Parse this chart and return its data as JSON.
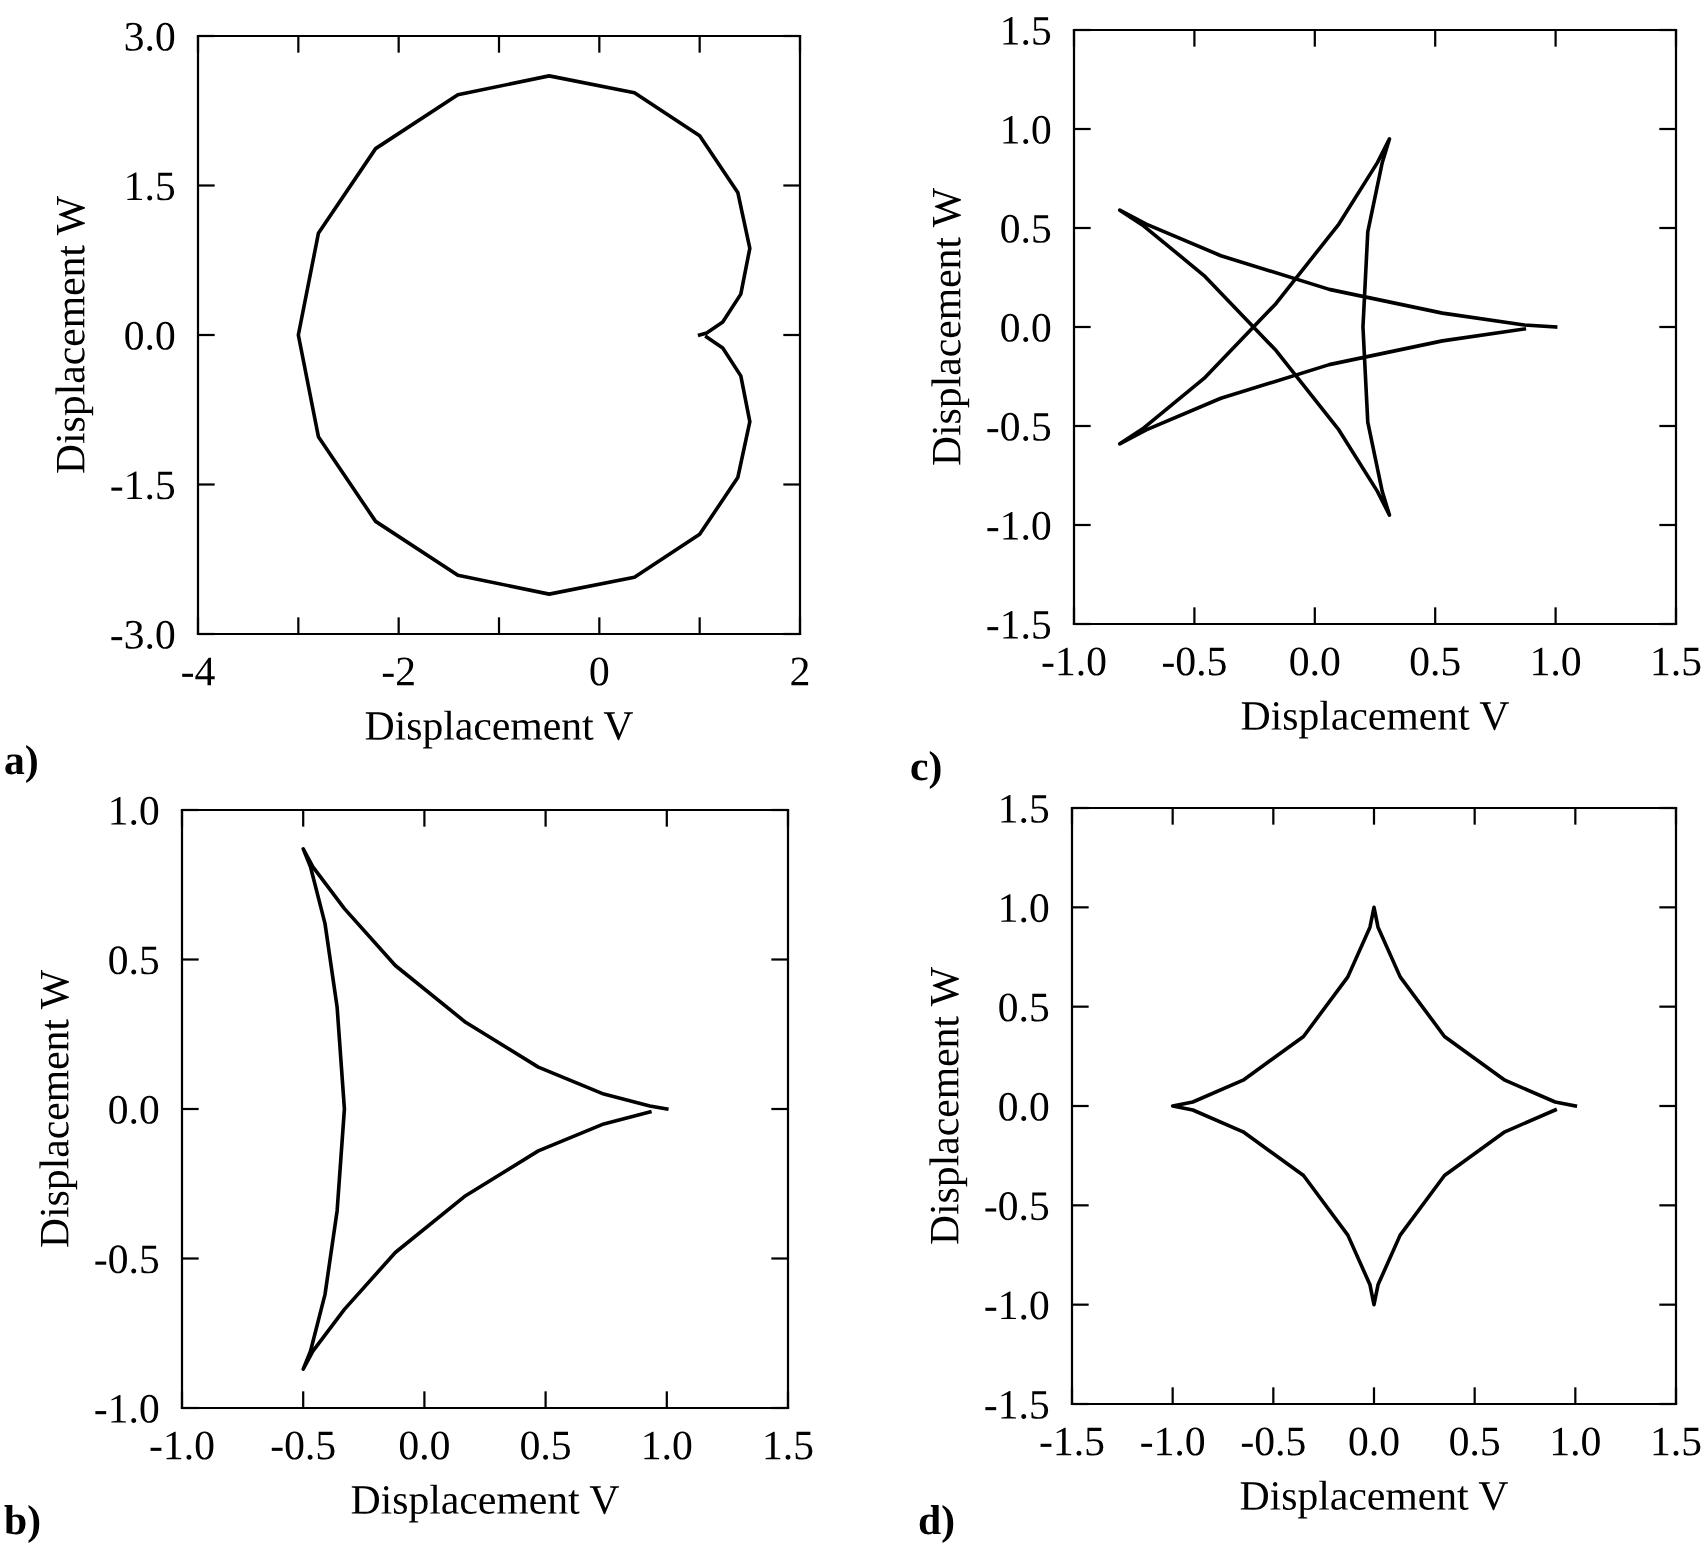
{
  "chart_data": [
    {
      "type": "line",
      "xlabel": "Displacement V",
      "ylabel": "Displacement W",
      "annotations": [
        "a)"
      ],
      "xlim": [
        -4,
        2
      ],
      "ylim": [
        -3.0,
        3.0
      ],
      "xticks": [
        -4,
        {
          "value": -3,
          "label": null
        },
        -2,
        {
          "value": -1,
          "label": null
        },
        0,
        {
          "value": 1,
          "label": null
        },
        2
      ],
      "yticks": [
        {
          "value": -3.0,
          "label": "-3.0"
        },
        {
          "value": -1.5,
          "label": "-1.5"
        },
        {
          "value": 0.0,
          "label": "0.0"
        },
        {
          "value": 1.5,
          "label": "1.5"
        },
        {
          "value": 3.0,
          "label": "3.0"
        }
      ],
      "series": [
        {
          "color": "#000000",
          "x": [
            1.0,
            1.07,
            1.23,
            1.41,
            1.5,
            1.38,
            1.0,
            0.35,
            -0.5,
            -1.41,
            -2.23,
            -2.8,
            -3.0,
            -2.8,
            -2.23,
            -1.41,
            -0.5,
            0.35,
            1.0,
            1.38,
            1.5,
            1.41,
            1.23,
            1.07
          ],
          "values": [
            0.0,
            0.02,
            0.13,
            0.41,
            0.87,
            1.43,
            2.0,
            2.43,
            2.6,
            2.41,
            1.87,
            1.02,
            0.0,
            -1.02,
            -1.87,
            -2.41,
            -2.6,
            -2.43,
            -2.0,
            -1.43,
            -0.87,
            -0.41,
            -0.13,
            -0.02
          ]
        }
      ]
    },
    {
      "type": "line",
      "xlabel": "Displacement V",
      "ylabel": "Displacement W",
      "annotations": [
        "c)"
      ],
      "xlim": [
        -1.0,
        1.5
      ],
      "ylim": [
        -1.5,
        1.5
      ],
      "xticks": [
        {
          "value": -1.0,
          "label": "-1.0"
        },
        {
          "value": -0.5,
          "label": "-0.5"
        },
        {
          "value": 0.0,
          "label": "0.0"
        },
        {
          "value": 0.5,
          "label": "0.5"
        },
        {
          "value": 1.0,
          "label": "1.0"
        },
        {
          "value": 1.5,
          "label": "1.5"
        }
      ],
      "yticks": [
        {
          "value": -1.5,
          "label": "-1.5"
        },
        {
          "value": -1.0,
          "label": "-1.0"
        },
        {
          "value": -0.5,
          "label": "-0.5"
        },
        {
          "value": 0.0,
          "label": "0.0"
        },
        {
          "value": 0.5,
          "label": "0.5"
        },
        {
          "value": 1.0,
          "label": "1.0"
        },
        {
          "value": 1.5,
          "label": "1.5"
        }
      ],
      "series": [
        {
          "color": "#000000",
          "x": [
            1.0,
            0.87,
            0.53,
            0.06,
            -0.39,
            -0.7,
            -0.81,
            -0.71,
            -0.46,
            -0.16,
            0.1,
            0.26,
            0.31,
            0.28,
            0.22,
            0.2,
            0.22,
            0.28,
            0.31,
            0.26,
            0.1,
            -0.16,
            -0.46,
            -0.71,
            -0.81,
            -0.7,
            -0.39,
            0.06,
            0.53,
            0.87
          ],
          "values": [
            0.0,
            0.01,
            0.07,
            0.19,
            0.36,
            0.52,
            0.59,
            0.51,
            0.26,
            -0.12,
            -0.52,
            -0.83,
            -0.95,
            -0.83,
            -0.48,
            0.0,
            0.48,
            0.83,
            0.95,
            0.83,
            0.52,
            0.12,
            -0.26,
            -0.51,
            -0.59,
            -0.52,
            -0.36,
            -0.19,
            -0.07,
            -0.01
          ]
        }
      ]
    },
    {
      "type": "line",
      "xlabel": "Displacement V",
      "ylabel": "Displacement W",
      "annotations": [
        "b)"
      ],
      "xlim": [
        -1.0,
        1.5
      ],
      "ylim": [
        -1.0,
        1.0
      ],
      "xticks": [
        {
          "value": -1.0,
          "label": "-1.0"
        },
        {
          "value": -0.5,
          "label": "-0.5"
        },
        {
          "value": 0.0,
          "label": "0.0"
        },
        {
          "value": 0.5,
          "label": "0.5"
        },
        {
          "value": 1.0,
          "label": "1.0"
        },
        {
          "value": 1.5,
          "label": "1.5"
        }
      ],
      "yticks": [
        {
          "value": -1.0,
          "label": "-1.0"
        },
        {
          "value": -0.5,
          "label": "-0.5"
        },
        {
          "value": 0.0,
          "label": "0.0"
        },
        {
          "value": 0.5,
          "label": "0.5"
        },
        {
          "value": 1.0,
          "label": "1.0"
        }
      ],
      "series": [
        {
          "color": "#000000",
          "x": [
            1.0,
            0.93,
            0.74,
            0.47,
            0.17,
            -0.12,
            -0.33,
            -0.46,
            -0.5,
            -0.47,
            -0.41,
            -0.36,
            -0.33,
            -0.36,
            -0.41,
            -0.47,
            -0.5,
            -0.46,
            -0.33,
            -0.12,
            0.17,
            0.47,
            0.74,
            0.93
          ],
          "values": [
            0.0,
            0.01,
            0.05,
            0.14,
            0.29,
            0.48,
            0.67,
            0.81,
            0.87,
            0.81,
            0.62,
            0.34,
            0.0,
            -0.34,
            -0.62,
            -0.81,
            -0.87,
            -0.81,
            -0.67,
            -0.48,
            -0.29,
            -0.14,
            -0.05,
            -0.01
          ]
        }
      ]
    },
    {
      "type": "line",
      "xlabel": "Displacement V",
      "ylabel": "Displacement W",
      "annotations": [
        "d)"
      ],
      "xlim": [
        -1.5,
        1.5
      ],
      "ylim": [
        -1.5,
        1.5
      ],
      "xticks": [
        {
          "value": -1.5,
          "label": "-1.5"
        },
        {
          "value": -1.0,
          "label": "-1.0"
        },
        {
          "value": -0.5,
          "label": "-0.5"
        },
        {
          "value": 0.0,
          "label": "0.0"
        },
        {
          "value": 0.5,
          "label": "0.5"
        },
        {
          "value": 1.0,
          "label": "1.0"
        },
        {
          "value": 1.5,
          "label": "1.5"
        }
      ],
      "yticks": [
        {
          "value": -1.5,
          "label": "-1.5"
        },
        {
          "value": -1.0,
          "label": "-1.0"
        },
        {
          "value": -0.5,
          "label": "-0.5"
        },
        {
          "value": 0.0,
          "label": "0.0"
        },
        {
          "value": 0.5,
          "label": "0.5"
        },
        {
          "value": 1.0,
          "label": "1.0"
        },
        {
          "value": 1.5,
          "label": "1.5"
        }
      ],
      "series": [
        {
          "color": "#000000",
          "x": [
            1.0,
            0.9,
            0.65,
            0.35,
            0.13,
            0.02,
            0.0,
            -0.02,
            -0.13,
            -0.35,
            -0.65,
            -0.9,
            -1.0,
            -0.9,
            -0.65,
            -0.35,
            -0.13,
            -0.02,
            0.0,
            0.02,
            0.13,
            0.35,
            0.65,
            0.9
          ],
          "values": [
            0.0,
            0.02,
            0.13,
            0.35,
            0.65,
            0.9,
            1.0,
            0.9,
            0.65,
            0.35,
            0.13,
            0.02,
            0.0,
            -0.02,
            -0.13,
            -0.35,
            -0.65,
            -0.9,
            -1.0,
            -0.9,
            -0.65,
            -0.35,
            -0.13,
            -0.02
          ]
        }
      ]
    }
  ]
}
